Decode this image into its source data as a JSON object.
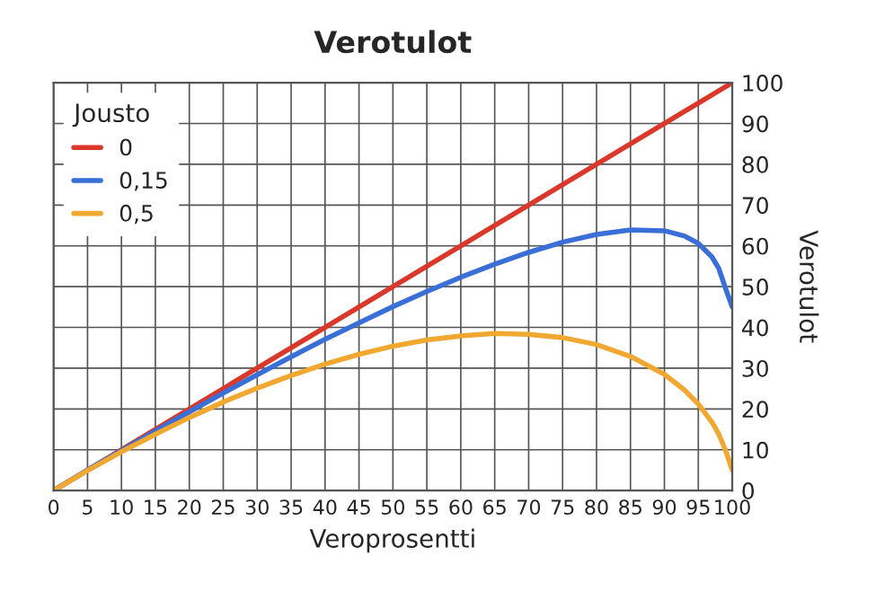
{
  "chart_data": {
    "type": "line",
    "title": "Verotulot",
    "xlabel": "Veroprosentti",
    "ylabel": "Verotulot",
    "legend_title": "Jousto",
    "series": [
      {
        "name": "0",
        "color": "#d9382a",
        "x": [
          0,
          100
        ],
        "values": [
          0,
          100
        ]
      },
      {
        "name": "0,15",
        "color": "#3a6fd8",
        "x": [
          0,
          5,
          10,
          15,
          20,
          25,
          30,
          35,
          40,
          45,
          50,
          55,
          60,
          65,
          70,
          75,
          80,
          85,
          90,
          93,
          95,
          97,
          98,
          99,
          100
        ],
        "values": [
          0,
          5,
          9.8,
          14.6,
          19.3,
          23.9,
          28.4,
          32.8,
          37.1,
          41.1,
          45.1,
          48.8,
          52.3,
          55.5,
          58.4,
          60.9,
          62.8,
          63.9,
          63.7,
          62.4,
          60.6,
          57.3,
          54.5,
          49.6,
          45
        ]
      },
      {
        "name": "0,5",
        "color": "#f0a830",
        "x": [
          0,
          5,
          10,
          15,
          20,
          25,
          30,
          35,
          40,
          45,
          50,
          55,
          60,
          65,
          70,
          75,
          80,
          85,
          90,
          93,
          95,
          97,
          98,
          99,
          100
        ],
        "values": [
          0,
          4.9,
          9.5,
          13.8,
          17.9,
          21.7,
          25.1,
          28.2,
          31,
          33.4,
          35.4,
          36.9,
          37.9,
          38.5,
          38.3,
          37.5,
          35.8,
          32.9,
          28.5,
          24.6,
          21.2,
          16.8,
          13.9,
          9.9,
          5
        ]
      }
    ],
    "xlim": [
      0,
      100
    ],
    "xticks": [
      0,
      5,
      10,
      15,
      20,
      25,
      30,
      35,
      40,
      45,
      50,
      55,
      60,
      65,
      70,
      75,
      80,
      85,
      90,
      95,
      100
    ],
    "ylim": [
      0,
      100
    ],
    "yticks": [
      0,
      10,
      20,
      30,
      40,
      50,
      60,
      70,
      80,
      90,
      100
    ],
    "grid": true,
    "legend": "top left",
    "marker": "none",
    "line_style": "solid"
  }
}
